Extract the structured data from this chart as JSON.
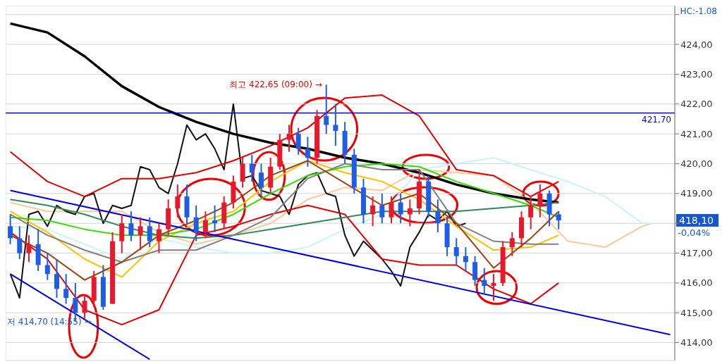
{
  "chart_data": {
    "type": "candlestick",
    "categories": [
      null,
      null,
      null,
      null,
      null,
      null,
      null,
      null,
      null,
      null,
      null,
      null,
      null,
      null,
      null,
      null,
      null,
      null,
      null,
      null,
      null,
      null,
      null,
      null,
      null,
      null,
      null,
      null,
      null,
      null,
      null,
      null,
      null,
      null,
      null,
      null,
      null,
      null,
      null,
      null,
      null,
      null,
      null,
      null,
      null,
      null,
      null,
      null,
      null,
      null,
      null,
      null,
      null,
      null,
      null,
      null,
      null,
      null,
      null,
      null,
      null,
      null,
      null,
      null,
      null,
      null,
      null,
      null,
      null,
      null,
      null,
      null
    ],
    "ohlc": [
      [
        417.9,
        418.3,
        417.3,
        417.5
      ],
      [
        417.5,
        417.9,
        416.8,
        417.0
      ],
      [
        417.0,
        417.6,
        416.7,
        417.3
      ],
      [
        417.3,
        417.8,
        416.4,
        416.6
      ],
      [
        416.6,
        417.0,
        416.1,
        416.3
      ],
      [
        416.3,
        416.8,
        415.5,
        415.8
      ],
      [
        415.8,
        416.3,
        415.3,
        415.5
      ],
      [
        415.5,
        416.0,
        414.7,
        415.0
      ],
      [
        415.0,
        415.6,
        414.8,
        415.4
      ],
      [
        415.4,
        416.4,
        415.2,
        416.2
      ],
      [
        416.2,
        416.6,
        415.1,
        415.2
      ],
      [
        415.3,
        417.7,
        415.3,
        417.4
      ],
      [
        417.4,
        418.3,
        417.0,
        418.0
      ],
      [
        418.0,
        418.4,
        417.4,
        417.6
      ],
      [
        417.6,
        418.2,
        417.1,
        417.9
      ],
      [
        417.9,
        418.2,
        417.2,
        417.4
      ],
      [
        417.4,
        418.0,
        417.0,
        417.8
      ],
      [
        417.8,
        418.8,
        417.6,
        418.5
      ],
      [
        418.5,
        419.3,
        418.2,
        418.9
      ],
      [
        418.9,
        419.3,
        418.0,
        418.2
      ],
      [
        418.2,
        418.6,
        417.4,
        417.7
      ],
      [
        417.7,
        418.4,
        417.5,
        418.1
      ],
      [
        418.1,
        418.6,
        417.7,
        418.0
      ],
      [
        418.0,
        418.9,
        417.8,
        418.7
      ],
      [
        418.7,
        419.6,
        418.5,
        419.4
      ],
      [
        419.4,
        420.2,
        419.2,
        420.0
      ],
      [
        420.0,
        420.3,
        419.4,
        419.7
      ],
      [
        419.7,
        420.0,
        418.9,
        419.2
      ],
      [
        419.2,
        420.2,
        419.0,
        419.9
      ],
      [
        419.9,
        421.0,
        419.8,
        420.8
      ],
      [
        420.8,
        421.3,
        420.4,
        421.0
      ],
      [
        421.0,
        421.2,
        420.3,
        420.5
      ],
      [
        420.5,
        420.9,
        419.9,
        420.2
      ],
      [
        420.2,
        421.8,
        420.0,
        421.6
      ],
      [
        421.6,
        422.65,
        421.0,
        421.3
      ],
      [
        421.3,
        422.0,
        420.6,
        421.1
      ],
      [
        421.1,
        421.4,
        420.0,
        420.3
      ],
      [
        420.3,
        420.5,
        419.0,
        419.2
      ],
      [
        419.2,
        419.5,
        418.0,
        418.3
      ],
      [
        418.3,
        418.9,
        417.9,
        418.6
      ],
      [
        418.6,
        419.0,
        418.0,
        418.2
      ],
      [
        418.2,
        418.9,
        418.0,
        418.7
      ],
      [
        418.7,
        419.0,
        418.0,
        418.3
      ],
      [
        418.3,
        418.8,
        417.9,
        418.5
      ],
      [
        418.5,
        419.8,
        418.3,
        419.4
      ],
      [
        419.4,
        419.6,
        418.2,
        418.4
      ],
      [
        418.4,
        418.8,
        417.7,
        418.0
      ],
      [
        418.0,
        418.2,
        416.9,
        417.2
      ],
      [
        417.2,
        417.5,
        416.6,
        416.9
      ],
      [
        416.9,
        417.2,
        416.4,
        416.7
      ],
      [
        416.7,
        416.9,
        415.9,
        416.1
      ],
      [
        416.1,
        416.5,
        415.6,
        415.9
      ],
      [
        415.9,
        416.3,
        415.4,
        416.0
      ],
      [
        416.0,
        417.4,
        415.9,
        417.2
      ],
      [
        417.2,
        417.7,
        416.9,
        417.5
      ],
      [
        417.5,
        418.4,
        417.2,
        418.2
      ],
      [
        418.2,
        418.9,
        417.8,
        418.6
      ],
      [
        418.6,
        419.3,
        418.2,
        419.0
      ],
      [
        419.0,
        419.1,
        417.9,
        418.3
      ],
      [
        418.3,
        418.4,
        417.8,
        418.1
      ],
      null,
      null,
      null,
      null,
      null,
      null,
      null,
      null,
      null,
      null,
      null,
      null
    ],
    "colors": [
      "#1e5ee6",
      "#1e5ee6",
      "#e8192c",
      "#1e5ee6",
      "#1e5ee6",
      "#1e5ee6",
      "#1e5ee6",
      "#1e5ee6",
      "#e8192c",
      "#e8192c",
      "#1e5ee6",
      "#e8192c",
      "#e8192c",
      "#1e5ee6",
      "#e8192c",
      "#1e5ee6",
      "#e8192c",
      "#e8192c",
      "#e8192c",
      "#1e5ee6",
      "#1e5ee6",
      "#e8192c",
      "#1e5ee6",
      "#e8192c",
      "#e8192c",
      "#e8192c",
      "#1e5ee6",
      "#1e5ee6",
      "#e8192c",
      "#e8192c",
      "#e8192c",
      "#1e5ee6",
      "#1e5ee6",
      "#e8192c",
      "#1e5ee6",
      "#1e5ee6",
      "#1e5ee6",
      "#1e5ee6",
      "#1e5ee6",
      "#e8192c",
      "#1e5ee6",
      "#e8192c",
      "#1e5ee6",
      "#e8192c",
      "#e8192c",
      "#1e5ee6",
      "#1e5ee6",
      "#1e5ee6",
      "#1e5ee6",
      "#1e5ee6",
      "#1e5ee6",
      "#1e5ee6",
      "#e8192c",
      "#e8192c",
      "#e8192c",
      "#e8192c",
      "#e8192c",
      "#e8192c",
      "#1e5ee6",
      "#1e5ee6",
      null,
      null,
      null,
      null,
      null,
      null,
      null,
      null,
      null,
      null,
      null,
      null
    ],
    "series": [
      {
        "type": "line",
        "color": "#ffc89a",
        "values": [
          418.7,
          null,
          null,
          null,
          418.4,
          null,
          null,
          null,
          418.4,
          null,
          null,
          null,
          418.4,
          null,
          null,
          null,
          417.7,
          null,
          null,
          null,
          417.3,
          null,
          null,
          null,
          417.6,
          null,
          null,
          null,
          418.0,
          null,
          null,
          null,
          418.8,
          null,
          null,
          null,
          419.2,
          null,
          null,
          null,
          419.1,
          null,
          null,
          null,
          419.8,
          null,
          null,
          null,
          419.7,
          null,
          null,
          null,
          419.6,
          null,
          null,
          null,
          418.7,
          null,
          null,
          null,
          417.4,
          null,
          null,
          null,
          417.2,
          null,
          null,
          null,
          417.9,
          418.0,
          null,
          null
        ]
      },
      {
        "type": "line",
        "color": "#c8f4f8",
        "values": [
          417.9,
          null,
          null,
          null,
          417.8,
          null,
          null,
          null,
          417.3,
          null,
          null,
          null,
          416.8,
          null,
          null,
          null,
          417.5,
          null,
          null,
          null,
          417.2,
          null,
          null,
          null,
          417.0,
          null,
          null,
          null,
          417.0,
          null,
          null,
          null,
          417.2,
          null,
          null,
          null,
          417.8,
          null,
          null,
          null,
          418.3,
          null,
          null,
          null,
          419.8,
          null,
          null,
          null,
          420.0,
          null,
          null,
          null,
          420.2,
          null,
          null,
          null,
          419.8,
          null,
          null,
          null,
          419.4,
          null,
          null,
          null,
          418.9,
          null,
          null,
          null,
          418.0,
          418.0,
          null,
          null
        ]
      },
      {
        "type": "line",
        "color": "#000000",
        "values": [
          424.7,
          null,
          null,
          null,
          424.4,
          null,
          null,
          null,
          423.6,
          null,
          null,
          null,
          422.6,
          null,
          null,
          null,
          421.9,
          null,
          null,
          null,
          421.4,
          null,
          null,
          null,
          421.0,
          null,
          null,
          null,
          420.7,
          null,
          null,
          null,
          420.5,
          null,
          null,
          null,
          420.2,
          null,
          null,
          null,
          420.0,
          null,
          null,
          null,
          419.7,
          null,
          null,
          null,
          419.3,
          null,
          null,
          null,
          419.0,
          null,
          null,
          null,
          418.8,
          null,
          null,
          418.7,
          null,
          null,
          null,
          null,
          null,
          null,
          null,
          null,
          null,
          null,
          null,
          null
        ]
      },
      {
        "type": "line",
        "color": "#111111",
        "values": [
          416.3,
          415.5,
          418.3,
          418.4,
          417.9,
          418.6,
          418.4,
          418.3,
          418.9,
          419.0,
          418.0,
          418.6,
          418.5,
          418.6,
          419.9,
          419.8,
          419.2,
          419.0,
          420.0,
          421.3,
          420.8,
          421.0,
          420.5,
          419.8,
          422.0,
          419.5,
          419.6,
          419.1,
          419.0,
          418.9,
          418.3,
          419.3,
          419.6,
          419.7,
          419.0,
          418.9,
          417.6,
          416.9,
          417.4,
          417.1,
          416.8,
          416.4,
          415.9,
          417.2,
          417.7,
          418.3,
          418.1,
          418.4,
          417.9,
          418.0,
          null,
          null,
          null,
          null,
          null,
          null,
          null,
          null,
          null,
          null,
          null,
          null,
          null,
          null,
          null,
          null,
          null,
          null,
          null,
          null,
          null,
          null
        ]
      },
      {
        "type": "line",
        "color": "#e00000",
        "values": [
          420.4,
          null,
          null,
          null,
          419.4,
          null,
          null,
          null,
          418.9,
          null,
          null,
          null,
          419.5,
          null,
          null,
          null,
          419.5,
          null,
          null,
          null,
          419.7,
          null,
          null,
          null,
          420.1,
          null,
          null,
          null,
          420.6,
          null,
          null,
          null,
          421.2,
          null,
          null,
          null,
          422.2,
          null,
          null,
          null,
          422.3,
          null,
          null,
          null,
          421.6,
          null,
          null,
          null,
          419.8,
          null,
          null,
          null,
          419.6,
          null,
          null,
          null,
          418.9,
          null,
          null,
          419.4,
          null,
          null,
          null,
          null,
          null,
          null,
          null,
          null,
          null,
          null,
          null,
          null
        ]
      },
      {
        "type": "line",
        "color": "#e00000",
        "values": [
          417.7,
          null,
          null,
          null,
          416.8,
          null,
          null,
          null,
          415.1,
          null,
          null,
          null,
          414.6,
          null,
          null,
          null,
          415.1,
          null,
          null,
          null,
          417.6,
          null,
          null,
          null,
          417.9,
          null,
          null,
          null,
          418.3,
          null,
          null,
          null,
          418.6,
          null,
          null,
          null,
          418.3,
          null,
          null,
          null,
          416.8,
          null,
          null,
          null,
          416.6,
          null,
          null,
          null,
          416.6,
          null,
          null,
          null,
          415.8,
          null,
          null,
          null,
          415.3,
          null,
          null,
          416.0,
          null,
          null,
          null,
          null,
          null,
          null,
          null,
          null,
          null,
          null,
          null,
          null
        ]
      },
      {
        "type": "line",
        "color": "#ffc000",
        "values": [
          418.4,
          null,
          null,
          null,
          417.7,
          null,
          null,
          null,
          416.8,
          null,
          null,
          null,
          416.2,
          null,
          null,
          null,
          417.4,
          null,
          null,
          null,
          418.0,
          null,
          null,
          null,
          418.4,
          null,
          null,
          null,
          419.4,
          null,
          null,
          null,
          420.1,
          null,
          null,
          null,
          419.7,
          null,
          null,
          null,
          419.4,
          null,
          null,
          null,
          418.8,
          null,
          null,
          null,
          417.9,
          null,
          null,
          null,
          417.1,
          null,
          null,
          null,
          417.2,
          null,
          null,
          417.6,
          null,
          null,
          null,
          null,
          null,
          null,
          null,
          null,
          null,
          null,
          null,
          null
        ]
      },
      {
        "type": "line",
        "color": "#33dd00",
        "values": [
          418.2,
          null,
          null,
          null,
          418.1,
          null,
          null,
          null,
          417.8,
          null,
          null,
          null,
          417.6,
          null,
          null,
          null,
          417.6,
          null,
          null,
          null,
          417.8,
          null,
          null,
          null,
          418.3,
          null,
          null,
          null,
          419.0,
          null,
          null,
          null,
          419.6,
          null,
          null,
          null,
          419.9,
          null,
          null,
          null,
          420.0,
          null,
          null,
          null,
          419.9,
          null,
          null,
          null,
          419.4,
          null,
          null,
          null,
          419.0,
          null,
          null,
          null,
          418.6,
          null,
          null,
          418.2,
          null,
          null,
          null,
          null,
          null,
          null,
          null,
          null,
          null,
          null,
          null,
          null
        ]
      },
      {
        "type": "line",
        "color": "#2e8b57",
        "values": [
          418.8,
          null,
          null,
          null,
          418.6,
          null,
          null,
          null,
          418.3,
          null,
          null,
          null,
          417.9,
          null,
          null,
          null,
          417.6,
          null,
          null,
          null,
          417.5,
          null,
          null,
          null,
          417.6,
          null,
          null,
          null,
          417.8,
          null,
          null,
          null,
          418.0,
          null,
          null,
          null,
          418.2,
          null,
          null,
          null,
          418.4,
          null,
          null,
          null,
          418.4,
          null,
          null,
          null,
          418.4,
          null,
          null,
          null,
          418.5,
          null,
          null,
          null,
          418.6,
          null,
          null,
          418.7,
          null,
          null,
          null,
          null,
          null,
          null,
          null,
          null,
          null,
          null,
          null,
          null
        ]
      },
      {
        "type": "line",
        "color": "#808080",
        "values": [
          418.3,
          null,
          null,
          null,
          417.6,
          null,
          null,
          null,
          417.1,
          null,
          null,
          null,
          416.7,
          null,
          null,
          null,
          417.1,
          null,
          null,
          null,
          417.1,
          null,
          null,
          null,
          417.6,
          null,
          null,
          null,
          418.2,
          null,
          null,
          null,
          419.5,
          null,
          null,
          null,
          420.0,
          null,
          null,
          null,
          419.8,
          null,
          null,
          null,
          419.8,
          null,
          null,
          null,
          418.0,
          null,
          null,
          null,
          417.4,
          null,
          null,
          null,
          417.3,
          null,
          null,
          417.3,
          null,
          null,
          null,
          null,
          null,
          null,
          null,
          null,
          null,
          null,
          null,
          null
        ]
      },
      {
        "type": "line",
        "color": "#a0410d",
        "values": [
          417.6,
          null,
          null,
          null,
          417.0,
          null,
          null,
          null,
          416.1,
          null,
          null,
          null,
          416.7,
          null,
          null,
          null,
          417.6,
          null,
          null,
          null,
          418.1,
          null,
          null,
          null,
          418.7,
          null,
          null,
          null,
          419.6,
          null,
          null,
          null,
          420.1,
          null,
          null,
          null,
          null,
          null,
          null,
          null,
          418.6,
          null,
          null,
          null,
          419.0,
          null,
          null,
          null,
          418.0,
          null,
          null,
          null,
          416.5,
          null,
          null,
          null,
          417.5,
          null,
          null,
          418.4,
          null,
          null,
          null,
          null,
          null,
          null,
          null,
          null,
          null,
          null,
          null,
          null
        ]
      },
      {
        "type": "line",
        "color": "#0000e0",
        "values": [
          419.1,
          null,
          null,
          null,
          null,
          null,
          null,
          null,
          null,
          null,
          null,
          null,
          null,
          null,
          null,
          null,
          null,
          null,
          null,
          null,
          null,
          null,
          null,
          null,
          null,
          null,
          null,
          null,
          null,
          null,
          null,
          null,
          null,
          null,
          null,
          null,
          null,
          null,
          null,
          null,
          null,
          null,
          null,
          null,
          null,
          null,
          null,
          null,
          null,
          null,
          null,
          null,
          null,
          null,
          null,
          null,
          null,
          null,
          null,
          null,
          null,
          null,
          null,
          null,
          null,
          null,
          null,
          null,
          null,
          null,
          null,
          414.27
        ]
      },
      {
        "type": "line",
        "color": "#0000e0",
        "values": [
          416.3,
          null,
          null,
          null,
          null,
          null,
          null,
          null,
          null,
          null,
          null,
          null,
          null,
          null,
          null,
          413.44,
          null,
          null,
          null,
          null,
          null,
          null,
          null,
          null,
          null,
          null,
          null,
          null,
          null,
          null,
          null,
          null,
          null,
          null,
          null,
          null,
          null,
          null,
          null,
          null,
          null,
          null,
          null,
          null,
          null,
          null,
          null,
          null,
          null,
          null,
          null,
          null,
          null,
          null,
          null,
          null,
          null,
          null,
          null,
          null,
          null,
          null,
          null,
          null,
          null,
          null,
          null,
          null,
          null,
          null,
          null,
          null
        ]
      }
    ],
    "ylim": [
      413.4,
      425.3
    ],
    "yticks": [
      {
        "value": 414,
        "label": "414,00"
      },
      {
        "value": 415,
        "label": "415,00"
      },
      {
        "value": 416,
        "label": "416,00"
      },
      {
        "value": 417,
        "label": "417,00"
      },
      {
        "value": 418,
        "label": null
      },
      {
        "value": 419,
        "label": "419,00"
      },
      {
        "value": 420,
        "label": "420,00"
      },
      {
        "value": 421,
        "label": "421,00"
      },
      {
        "value": 422,
        "label": "422,00"
      },
      {
        "value": 423,
        "label": "423,00"
      },
      {
        "value": 424,
        "label": "424,00"
      },
      {
        "value": 425,
        "label": null
      }
    ],
    "ref_lines": [
      {
        "axis": "y",
        "value": 421.7,
        "label": "421,70",
        "color": "#0000e0"
      }
    ],
    "annotations": [
      "HC:-1.08",
      "최고 422,65 (09:00) →",
      "저 414,70 (14:55) →",
      "418,10",
      "-0,04%"
    ],
    "grid": true,
    "marker": "none"
  }
}
